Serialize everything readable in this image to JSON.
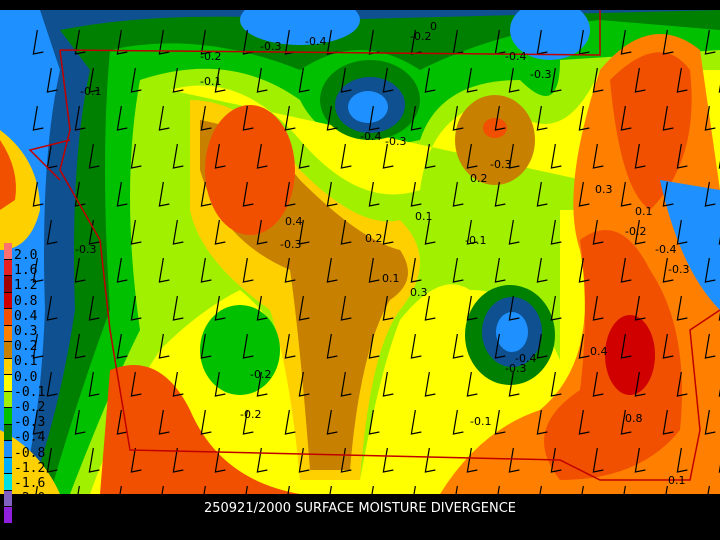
{
  "caption": "250921/2000 SURFACE MOISTURE DIVERGENCE",
  "legend": {
    "labels": [
      "2.0",
      "1.6",
      "1.2",
      "0.8",
      "0.4",
      "0.3",
      "0.2",
      "0.1",
      "0.0",
      "-0.1",
      "-0.2",
      "-0.3",
      "-0.4",
      "-0.8",
      "-1.2",
      "-1.6",
      "-2.0"
    ],
    "colors": [
      "#ff7070",
      "#e82020",
      "#a00000",
      "#d00000",
      "#f05000",
      "#ff8000",
      "#c88000",
      "#ffd000",
      "#ffff00",
      "#a0f000",
      "#00c000",
      "#008000",
      "#1e90ff",
      "#00b0ff",
      "#00e0e0",
      "#8060c0",
      "#9020e0"
    ]
  },
  "contour_labels": [
    "-0.2",
    "-0.1",
    "-0.3",
    "-0.4",
    "-0.1",
    "0",
    "-0.2",
    "-0.4",
    "-0.3",
    "-0.4",
    "-0.3",
    "-0.3",
    "0.2",
    "0.4",
    "-0.3",
    "0.2",
    "0.1",
    "-0.1",
    "0.3",
    "0.1",
    "-0.2",
    "-0.4",
    "-0.3",
    "-0.2",
    "-0.1",
    "0.3",
    "0.1",
    "0.4",
    "0.8",
    "0.1",
    "-0.3",
    "-0.4",
    "-0.2",
    "-0.3"
  ],
  "colors": {
    "border": "#c00000",
    "background": "#000000",
    "text": "#ffffff"
  }
}
